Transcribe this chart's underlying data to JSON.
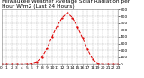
{
  "title": "Milwaukee Weather Average Solar Radiation per Hour W/m2 (Last 24 Hours)",
  "hours": [
    0,
    1,
    2,
    3,
    4,
    5,
    6,
    7,
    8,
    9,
    10,
    11,
    12,
    13,
    14,
    15,
    16,
    17,
    18,
    19,
    20,
    21,
    22,
    23
  ],
  "values": [
    0,
    0,
    0,
    0,
    0,
    2,
    8,
    30,
    100,
    230,
    400,
    560,
    680,
    750,
    680,
    540,
    380,
    210,
    65,
    8,
    0,
    0,
    0,
    0
  ],
  "line_color": "#dd0000",
  "bg_color": "#ffffff",
  "grid_color": "#999999",
  "ylim": [
    0,
    800
  ],
  "xlim": [
    0,
    23
  ],
  "title_fontsize": 4.2,
  "tick_fontsize": 3.2,
  "linewidth": 0.7,
  "markersize": 1.2
}
